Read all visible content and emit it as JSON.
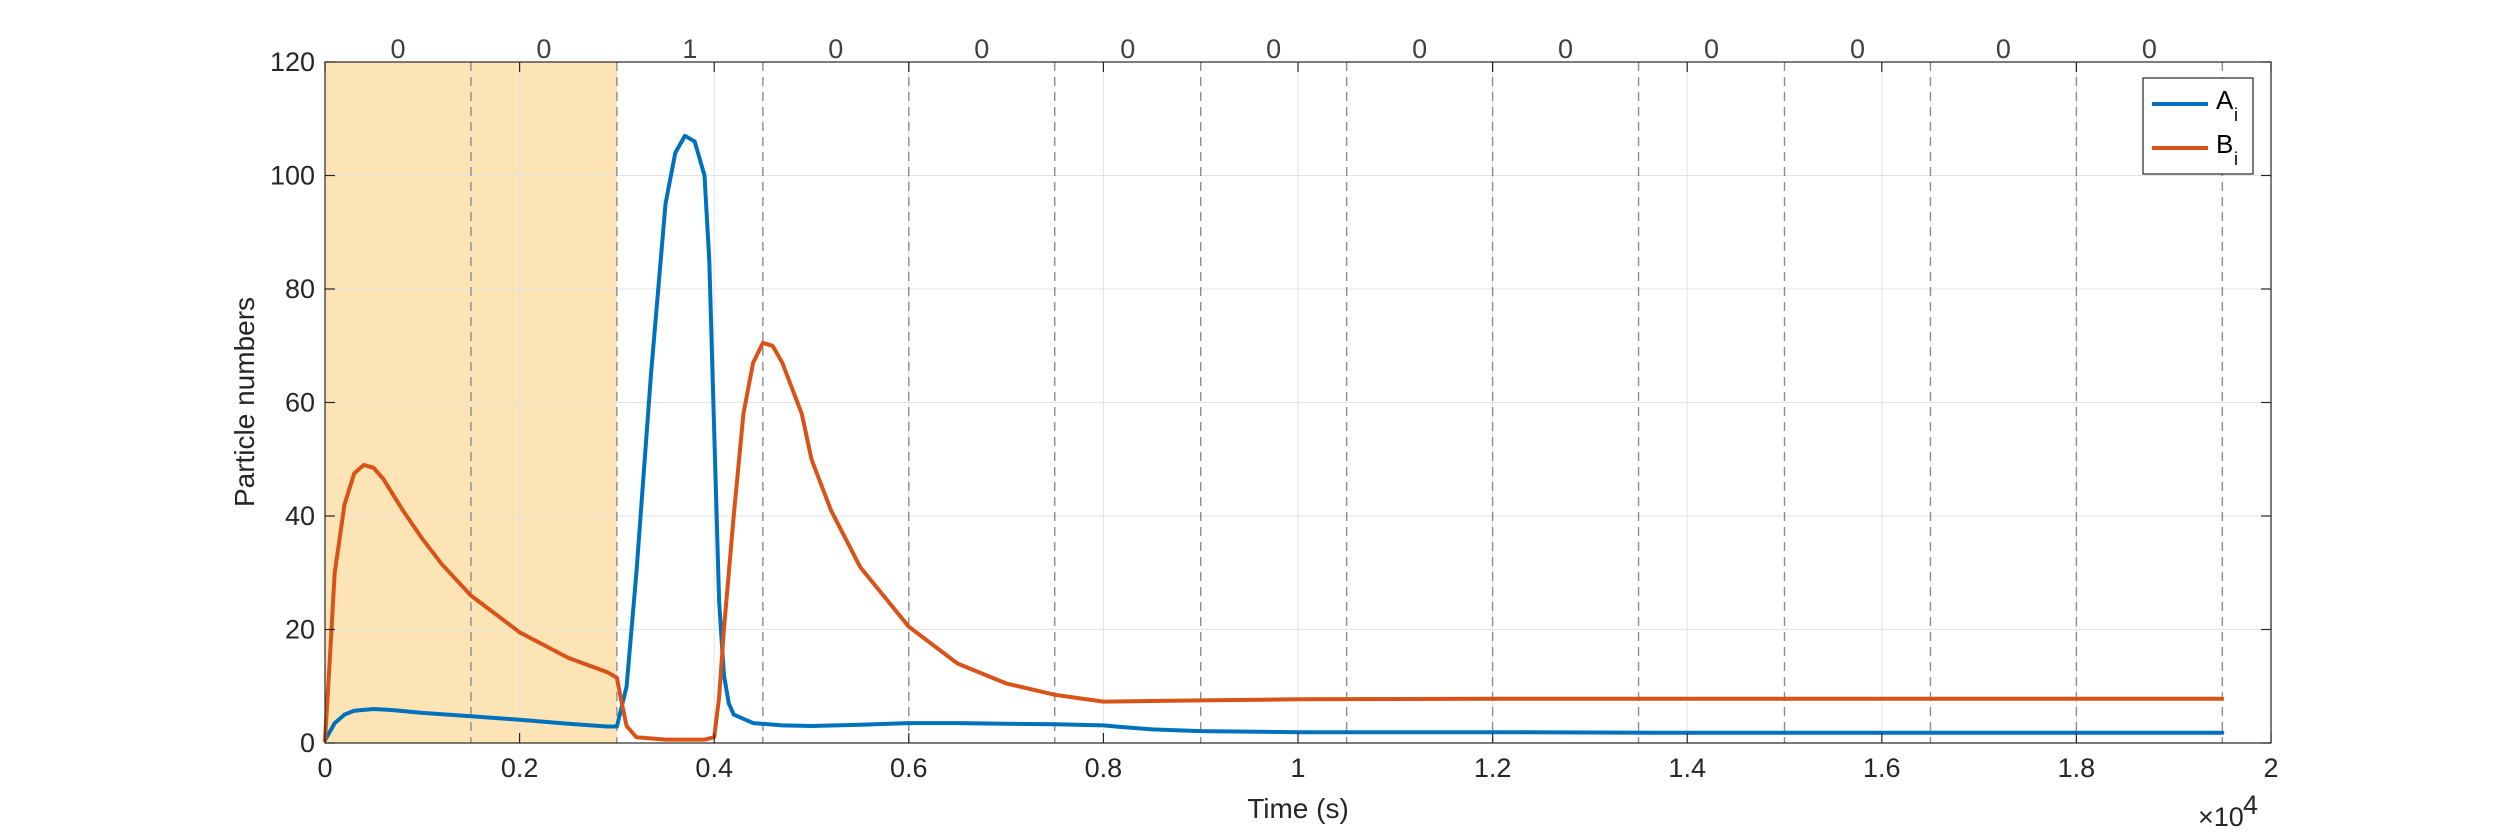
{
  "chart_data": {
    "type": "line",
    "title": "",
    "xlabel": "Time (s)",
    "ylabel": "Particle numbers",
    "xlim": [
      0,
      2
    ],
    "ylim": [
      0,
      120
    ],
    "x_scale_note": "×10",
    "x_scale_exponent": "4",
    "grid": true,
    "legend_position": "top-right",
    "xticks": [
      "0",
      "0.2",
      "0.4",
      "0.6",
      "0.8",
      "1",
      "1.2",
      "1.4",
      "1.6",
      "1.8",
      "2"
    ],
    "yticks": [
      "0",
      "20",
      "40",
      "60",
      "80",
      "100",
      "120"
    ],
    "shaded_region": {
      "x": [
        0,
        0.3
      ],
      "color": "#fde4b5"
    },
    "segment_boundaries": [
      0.15,
      0.3,
      0.45,
      0.6,
      0.75,
      0.9,
      1.05,
      1.2,
      1.35,
      1.5,
      1.65,
      1.8,
      1.95
    ],
    "segment_labels": [
      "0",
      "0",
      "1",
      "0",
      "0",
      "0",
      "0",
      "0",
      "0",
      "0",
      "0",
      "0",
      "0"
    ],
    "series": [
      {
        "name": "A",
        "subscript": "i",
        "color": "#0072bd",
        "points": [
          [
            0,
            0.5
          ],
          [
            0.01,
            3.5
          ],
          [
            0.02,
            5
          ],
          [
            0.03,
            5.7
          ],
          [
            0.05,
            6
          ],
          [
            0.07,
            5.8
          ],
          [
            0.1,
            5.3
          ],
          [
            0.15,
            4.7
          ],
          [
            0.2,
            4.1
          ],
          [
            0.25,
            3.4
          ],
          [
            0.29,
            2.9
          ],
          [
            0.3,
            2.9
          ],
          [
            0.31,
            10
          ],
          [
            0.32,
            30
          ],
          [
            0.335,
            65
          ],
          [
            0.35,
            95
          ],
          [
            0.36,
            104
          ],
          [
            0.37,
            107
          ],
          [
            0.38,
            106
          ],
          [
            0.39,
            100
          ],
          [
            0.395,
            85
          ],
          [
            0.4,
            55
          ],
          [
            0.405,
            25
          ],
          [
            0.41,
            12
          ],
          [
            0.415,
            7
          ],
          [
            0.42,
            5
          ],
          [
            0.44,
            3.5
          ],
          [
            0.47,
            3.1
          ],
          [
            0.5,
            3
          ],
          [
            0.55,
            3.2
          ],
          [
            0.6,
            3.5
          ],
          [
            0.65,
            3.5
          ],
          [
            0.7,
            3.4
          ],
          [
            0.75,
            3.3
          ],
          [
            0.8,
            3.1
          ],
          [
            0.82,
            2.8
          ],
          [
            0.85,
            2.4
          ],
          [
            0.9,
            2.1
          ],
          [
            1,
            1.9
          ],
          [
            1.2,
            1.9
          ],
          [
            1.4,
            1.8
          ],
          [
            1.6,
            1.8
          ],
          [
            1.8,
            1.8
          ],
          [
            1.95,
            1.8
          ]
        ]
      },
      {
        "name": "B",
        "subscript": "i",
        "color": "#d95319",
        "points": [
          [
            0,
            0.5
          ],
          [
            0.005,
            15
          ],
          [
            0.01,
            30
          ],
          [
            0.02,
            42
          ],
          [
            0.03,
            47.5
          ],
          [
            0.04,
            49
          ],
          [
            0.05,
            48.5
          ],
          [
            0.06,
            46.5
          ],
          [
            0.08,
            41
          ],
          [
            0.1,
            36
          ],
          [
            0.12,
            31.5
          ],
          [
            0.15,
            26
          ],
          [
            0.2,
            19.5
          ],
          [
            0.25,
            15
          ],
          [
            0.29,
            12.5
          ],
          [
            0.3,
            11.5
          ],
          [
            0.305,
            7
          ],
          [
            0.31,
            3
          ],
          [
            0.32,
            1
          ],
          [
            0.35,
            0.6
          ],
          [
            0.39,
            0.6
          ],
          [
            0.4,
            1
          ],
          [
            0.405,
            8
          ],
          [
            0.41,
            20
          ],
          [
            0.42,
            40
          ],
          [
            0.43,
            58
          ],
          [
            0.44,
            67
          ],
          [
            0.45,
            70.5
          ],
          [
            0.46,
            70
          ],
          [
            0.47,
            67
          ],
          [
            0.49,
            58
          ],
          [
            0.5,
            50
          ],
          [
            0.52,
            41
          ],
          [
            0.55,
            31
          ],
          [
            0.6,
            20.5
          ],
          [
            0.65,
            14
          ],
          [
            0.7,
            10.5
          ],
          [
            0.75,
            8.5
          ],
          [
            0.8,
            7.3
          ],
          [
            0.85,
            7.4
          ],
          [
            0.9,
            7.5
          ],
          [
            1,
            7.7
          ],
          [
            1.2,
            7.8
          ],
          [
            1.4,
            7.8
          ],
          [
            1.6,
            7.8
          ],
          [
            1.8,
            7.8
          ],
          [
            1.95,
            7.8
          ]
        ]
      }
    ]
  }
}
